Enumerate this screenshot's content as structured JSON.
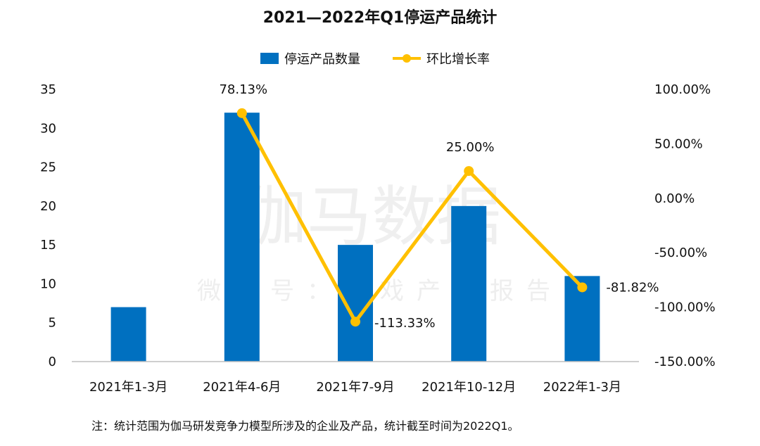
{
  "chart_data": {
    "type": "bar+line",
    "title": "2021—2022年Q1停运产品统计",
    "categories": [
      "2021年1-3月",
      "2021年4-6月",
      "2021年7-9月",
      "2021年10-12月",
      "2022年1-3月"
    ],
    "series": [
      {
        "name": "停运产品数量",
        "type": "bar",
        "axis": "left",
        "color": "#0070C0",
        "values": [
          7,
          32,
          15,
          20,
          11
        ]
      },
      {
        "name": "环比增长率",
        "type": "line",
        "axis": "right",
        "color": "#FFC000",
        "values": [
          null,
          78.13,
          -113.33,
          25.0,
          -81.82
        ],
        "labels": [
          "",
          "78.13%",
          "-113.33%",
          "25.00%",
          "-81.82%"
        ]
      }
    ],
    "y_left": {
      "min": 0,
      "max": 35,
      "ticks": [
        0,
        5,
        10,
        15,
        20,
        25,
        30,
        35
      ],
      "tick_labels": [
        "0",
        "5",
        "10",
        "15",
        "20",
        "25",
        "30",
        "35"
      ]
    },
    "y_right": {
      "min": -150,
      "max": 100,
      "ticks": [
        -150,
        -100,
        -50,
        0,
        50,
        100
      ],
      "tick_labels": [
        "-150.00%",
        "-100.00%",
        "-50.00%",
        "0.00%",
        "50.00%",
        "100.00%"
      ]
    },
    "legend": {
      "position": "top-center"
    },
    "grid": false
  },
  "watermark": {
    "main": "伽马数据",
    "sub": "微信号：游戏产业报告"
  },
  "footnote": "注：统计范围为伽马研发竞争力模型所涉及的企业及产品，统计截至时间为2022Q1。"
}
